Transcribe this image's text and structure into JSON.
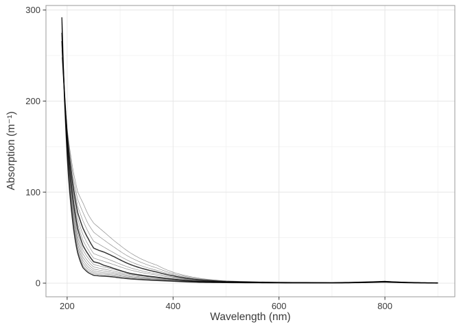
{
  "figure": {
    "background": "#ffffff",
    "panel_border_color": "#999999",
    "grid_major_color": "#e6e6e6",
    "grid_minor_color": "#f3f3f3",
    "tick_color": "#333333",
    "text_color": "#3a3a3a",
    "line_color": "#000000"
  },
  "chart_data": {
    "type": "line",
    "title": "",
    "xlabel": "Wavelength (nm)",
    "ylabel": "Absorption (m⁻¹)",
    "legend": false,
    "grid": true,
    "xlim": [
      160,
      932
    ],
    "ylim": [
      -15,
      305
    ],
    "x_ticks": [
      200,
      400,
      600,
      800
    ],
    "y_ticks": [
      0,
      100,
      200,
      300
    ],
    "x_minor_ticks": [
      300,
      500,
      700,
      900
    ],
    "y_minor_ticks": [
      50,
      150,
      250
    ],
    "x_data_range": [
      190,
      900
    ],
    "y_peak_max": 292,
    "n_series": 14,
    "wavelengths": [
      190,
      200,
      210,
      220,
      230,
      240,
      250,
      260,
      270,
      280,
      290,
      300,
      320,
      340,
      370,
      400,
      450,
      500,
      600,
      700,
      750,
      800,
      850,
      900
    ],
    "series": [
      {
        "values": [
          292,
          140,
          70,
          33,
          17,
          11.5,
          8.6,
          8.0,
          7.6,
          7.2,
          6.6,
          5.8,
          4.6,
          3.8,
          2.9,
          2.1,
          0.95,
          0.6,
          0.3,
          0.2,
          0.55,
          1.2,
          0.4,
          0.12
        ],
        "emphasis": true
      },
      {
        "values": [
          289,
          142.3,
          73.3,
          35.9,
          19.3,
          13.3,
          10.2,
          9.4,
          8.8,
          8.2,
          7.6,
          6.8,
          5.4,
          4.5,
          3.4,
          2.4,
          1.1,
          0.65,
          0.33,
          0.22,
          0.58,
          1.26,
          0.42,
          0.13
        ],
        "emphasis": false
      },
      {
        "values": [
          287,
          144.6,
          76.8,
          39.1,
          21.9,
          15.3,
          11.7,
          10.8,
          10.1,
          9.4,
          8.7,
          7.8,
          6.2,
          5.2,
          3.9,
          2.7,
          1.2,
          0.72,
          0.36,
          0.24,
          0.62,
          1.32,
          0.45,
          0.14
        ],
        "emphasis": false
      },
      {
        "values": [
          285,
          146.9,
          80.5,
          42.6,
          24.8,
          17.7,
          13.4,
          12.4,
          11.6,
          10.8,
          9.9,
          8.9,
          7.1,
          5.9,
          4.5,
          3.1,
          1.4,
          0.8,
          0.4,
          0.26,
          0.66,
          1.38,
          0.48,
          0.15
        ],
        "emphasis": false
      },
      {
        "values": [
          282,
          149.2,
          84.3,
          46.4,
          28.2,
          20.5,
          15.4,
          14.3,
          13.3,
          12.4,
          11.4,
          10.2,
          8.2,
          6.8,
          5.1,
          3.6,
          1.6,
          0.9,
          0.44,
          0.28,
          0.7,
          1.45,
          0.51,
          0.16
        ],
        "emphasis": false
      },
      {
        "values": [
          280,
          151.5,
          88.3,
          50.5,
          32,
          23.6,
          17.8,
          16.5,
          15.3,
          14.2,
          13,
          11.7,
          9.4,
          7.8,
          5.9,
          4.0,
          1.8,
          1.0,
          0.48,
          0.31,
          0.74,
          1.52,
          0.54,
          0.18
        ],
        "emphasis": false
      },
      {
        "values": [
          277,
          153.8,
          92.5,
          55,
          36.3,
          27.3,
          20.5,
          19,
          17.6,
          16.3,
          14.9,
          13.4,
          10.8,
          9.0,
          6.8,
          4.6,
          2.1,
          1.1,
          0.53,
          0.34,
          0.79,
          1.6,
          0.57,
          0.19
        ],
        "emphasis": false
      },
      {
        "values": [
          275,
          156.2,
          96.9,
          59.9,
          41.2,
          31.5,
          23.5,
          22,
          19.5,
          17.8,
          15.8,
          13.9,
          10.5,
          8.7,
          6.5,
          4.4,
          2.0,
          1.05,
          0.5,
          0.32,
          0.76,
          1.56,
          0.55,
          0.18
        ],
        "emphasis": true
      },
      {
        "values": [
          272,
          158.5,
          101.5,
          65.2,
          46.8,
          36.4,
          27.5,
          25.6,
          23.8,
          21.9,
          20,
          17.9,
          14.3,
          11.7,
          8.7,
          5.9,
          2.7,
          1.3,
          0.6,
          0.38,
          0.86,
          1.7,
          0.62,
          0.21
        ],
        "emphasis": false
      },
      {
        "values": [
          269,
          160.8,
          106.4,
          71,
          53.1,
          42,
          32.5,
          30.2,
          28,
          25.7,
          23.4,
          21,
          16.7,
          13.6,
          10.1,
          6.7,
          3.0,
          1.5,
          0.67,
          0.42,
          0.92,
          1.78,
          0.66,
          0.23
        ],
        "emphasis": false
      },
      {
        "values": [
          266,
          163.1,
          111.4,
          77.3,
          60.2,
          48.6,
          38.5,
          36,
          34,
          31.4,
          28.6,
          25.6,
          20.3,
          16.4,
          12.1,
          8.0,
          3.6,
          1.7,
          0.75,
          0.46,
          0.99,
          1.88,
          0.7,
          0.25
        ],
        "emphasis": true
      },
      {
        "values": [
          262,
          165.4,
          116.7,
          84.2,
          68.4,
          56.1,
          46,
          42.8,
          39.4,
          36,
          32.8,
          29.5,
          23.5,
          19,
          14,
          9.2,
          4.1,
          1.9,
          0.83,
          0.5,
          1.06,
          1.97,
          0.75,
          0.27
        ],
        "emphasis": false
      },
      {
        "values": [
          256,
          167.7,
          122.3,
          91.7,
          77.6,
          64.8,
          56,
          51.5,
          47.2,
          43,
          39,
          35,
          28,
          22.7,
          16.6,
          10.5,
          4.7,
          2.2,
          0.92,
          0.55,
          1.13,
          2.07,
          0.8,
          0.29
        ],
        "emphasis": false
      },
      {
        "values": [
          248,
          170,
          128,
          100,
          88,
          75,
          66,
          61,
          56,
          51,
          46,
          41.5,
          33,
          26.5,
          19.6,
          12,
          5.4,
          2.5,
          1.0,
          0.6,
          1.2,
          2.17,
          0.85,
          0.31
        ],
        "emphasis": false
      }
    ]
  }
}
